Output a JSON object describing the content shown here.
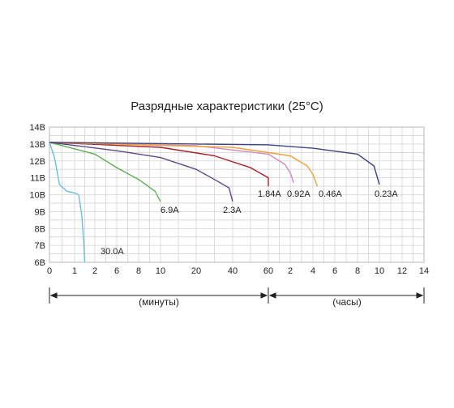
{
  "chart_data": {
    "type": "line",
    "title": "Разрядные характеристики (25°C)",
    "y_ticks": [
      "14В",
      "13В",
      "12В",
      "11В",
      "10В",
      "9В",
      "8В",
      "7В",
      "6В"
    ],
    "ylim": [
      6,
      14
    ],
    "x_ticks": [
      "0",
      "1",
      "2",
      "6",
      "8",
      "10",
      "20",
      "40",
      "60",
      "2",
      "4",
      "6",
      "8",
      "10",
      "12",
      "14"
    ],
    "x_axis_segments": [
      {
        "label": "(минуты)",
        "range": "0–60"
      },
      {
        "label": "(часы)",
        "range": "0–14"
      }
    ],
    "grid": true,
    "series": [
      {
        "name": "30.0A",
        "color": "#6bbedd",
        "points": [
          [
            0,
            13.1
          ],
          [
            0.2,
            12.2
          ],
          [
            0.4,
            10.6
          ],
          [
            0.7,
            10.2
          ],
          [
            1,
            10.1
          ],
          [
            1.2,
            10.0
          ],
          [
            1.35,
            8.8
          ],
          [
            1.45,
            7.2
          ],
          [
            1.5,
            6.0
          ]
        ]
      },
      {
        "name": "6.9A",
        "color": "#5fae55",
        "points": [
          [
            0,
            13.1
          ],
          [
            2,
            12.4
          ],
          [
            6,
            11.6
          ],
          [
            8,
            10.9
          ],
          [
            9.5,
            10.2
          ],
          [
            10,
            9.6
          ]
        ]
      },
      {
        "name": "2.3A",
        "color": "#5d4a86",
        "points": [
          [
            0,
            13.1
          ],
          [
            6,
            12.6
          ],
          [
            10,
            12.2
          ],
          [
            20,
            11.5
          ],
          [
            30,
            10.9
          ],
          [
            38,
            10.4
          ],
          [
            40,
            9.6
          ]
        ]
      },
      {
        "name": "1.84A",
        "color": "#a6222c",
        "points": [
          [
            0,
            13.1
          ],
          [
            10,
            12.8
          ],
          [
            30,
            12.3
          ],
          [
            50,
            11.6
          ],
          [
            60,
            11.0
          ],
          [
            65,
            10.5
          ]
        ]
      },
      {
        "name": "0.92A",
        "color": "#cf8ac4",
        "points": [
          [
            0,
            13.1
          ],
          [
            20,
            12.9
          ],
          [
            60,
            12.4
          ],
          [
            1.5,
            11.8
          ],
          [
            2,
            11.3
          ],
          [
            2.3,
            10.7
          ]
        ]
      },
      {
        "name": "0.46A",
        "color": "#eea23c",
        "points": [
          [
            0,
            13.1
          ],
          [
            40,
            12.8
          ],
          [
            2,
            12.3
          ],
          [
            3.5,
            11.7
          ],
          [
            4,
            11.2
          ],
          [
            4.4,
            10.5
          ]
        ]
      },
      {
        "name": "0.23A",
        "color": "#3e4480",
        "points": [
          [
            0,
            13.1
          ],
          [
            60,
            12.95
          ],
          [
            4,
            12.75
          ],
          [
            8,
            12.4
          ],
          [
            9.5,
            11.7
          ],
          [
            10,
            10.6
          ]
        ]
      }
    ]
  }
}
